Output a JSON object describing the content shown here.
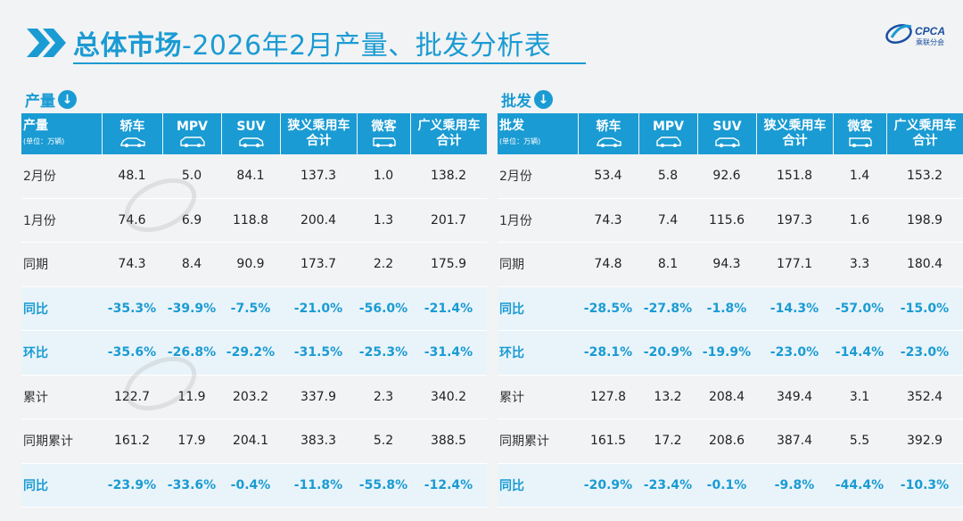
{
  "header": {
    "title_main": "总体市场",
    "title_sub": "-2026年2月产量、批发分析表",
    "logo_text": "CPCA",
    "logo_sub": "乘联分会"
  },
  "columns": {
    "c1": "轿车",
    "c2": "MPV",
    "c3": "SUV",
    "c4_line1": "狭义乘用车",
    "c4_line2": "合计",
    "c5": "微客",
    "c6_line1": "广义乘用车",
    "c6_line2": "合计",
    "unit": "(单位：万辆)"
  },
  "production": {
    "section_label": "产量",
    "header_label": "产量",
    "rows": [
      {
        "label": "2月份",
        "type": "plain",
        "values": [
          "48.1",
          "5.0",
          "84.1",
          "137.3",
          "1.0",
          "138.2"
        ]
      },
      {
        "label": "1月份",
        "type": "plain",
        "values": [
          "74.6",
          "6.9",
          "118.8",
          "200.4",
          "1.3",
          "201.7"
        ]
      },
      {
        "label": "同期",
        "type": "plain",
        "values": [
          "74.3",
          "8.4",
          "90.9",
          "173.7",
          "2.2",
          "175.9"
        ]
      },
      {
        "label": "同比",
        "type": "pct",
        "values": [
          "-35.3%",
          "-39.9%",
          "-7.5%",
          "-21.0%",
          "-56.0%",
          "-21.4%"
        ]
      },
      {
        "label": "环比",
        "type": "pct",
        "values": [
          "-35.6%",
          "-26.8%",
          "-29.2%",
          "-31.5%",
          "-25.3%",
          "-31.4%"
        ]
      },
      {
        "label": "累计",
        "type": "plain",
        "values": [
          "122.7",
          "11.9",
          "203.2",
          "337.9",
          "2.3",
          "340.2"
        ]
      },
      {
        "label": "同期累计",
        "type": "plain",
        "values": [
          "161.2",
          "17.9",
          "204.1",
          "383.3",
          "5.2",
          "388.5"
        ]
      },
      {
        "label": "同比",
        "type": "pct",
        "values": [
          "-23.9%",
          "-33.6%",
          "-0.4%",
          "-11.8%",
          "-55.8%",
          "-12.4%"
        ]
      }
    ]
  },
  "wholesale": {
    "section_label": "批发",
    "header_label": "批发",
    "rows": [
      {
        "label": "2月份",
        "type": "plain",
        "values": [
          "53.4",
          "5.8",
          "92.6",
          "151.8",
          "1.4",
          "153.2"
        ]
      },
      {
        "label": "1月份",
        "type": "plain",
        "values": [
          "74.3",
          "7.4",
          "115.6",
          "197.3",
          "1.6",
          "198.9"
        ]
      },
      {
        "label": "同期",
        "type": "plain",
        "values": [
          "74.8",
          "8.1",
          "94.3",
          "177.1",
          "3.3",
          "180.4"
        ]
      },
      {
        "label": "同比",
        "type": "pct",
        "values": [
          "-28.5%",
          "-27.8%",
          "-1.8%",
          "-14.3%",
          "-57.0%",
          "-15.0%"
        ]
      },
      {
        "label": "环比",
        "type": "pct",
        "values": [
          "-28.1%",
          "-20.9%",
          "-19.9%",
          "-23.0%",
          "-14.4%",
          "-23.0%"
        ]
      },
      {
        "label": "累计",
        "type": "plain",
        "values": [
          "127.8",
          "13.2",
          "208.4",
          "349.4",
          "3.1",
          "352.4"
        ]
      },
      {
        "label": "同期累计",
        "type": "plain",
        "values": [
          "161.5",
          "17.2",
          "208.6",
          "387.4",
          "5.5",
          "392.9"
        ]
      },
      {
        "label": "同比",
        "type": "pct",
        "values": [
          "-20.9%",
          "-23.4%",
          "-0.1%",
          "-9.8%",
          "-44.4%",
          "-10.3%"
        ]
      }
    ]
  },
  "colors": {
    "accent": "#1a9bd3",
    "pct_bg": "#e9f4fa",
    "background": "#f2f3f4"
  }
}
